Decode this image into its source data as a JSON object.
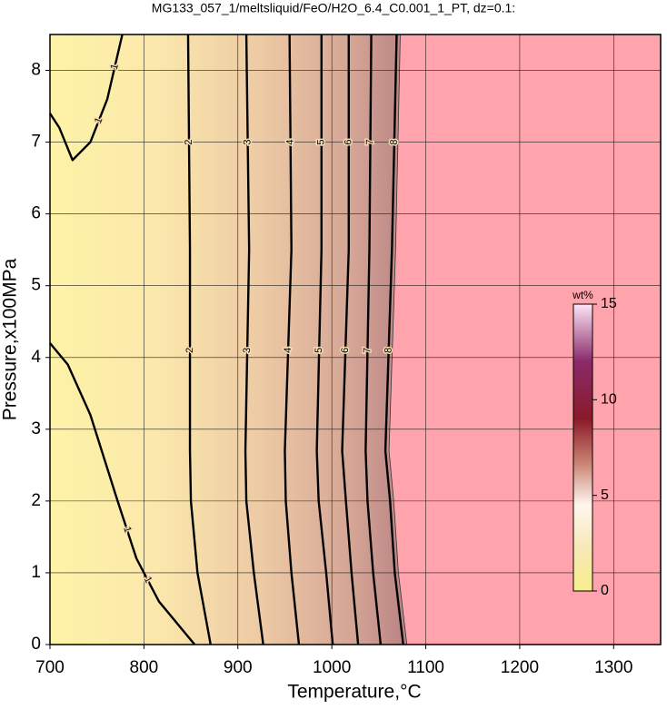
{
  "chart_data": {
    "type": "contour",
    "title": "MG133_057_1/meltsliquid/FeO/H2O_6.4_C0.001_1_PT, dz=0.1:",
    "x_label": "Temperature,°C",
    "y_label": "Pressure,x100MPa",
    "xlim": [
      700,
      1350
    ],
    "ylim": [
      0,
      8.5
    ],
    "xticks": [
      700,
      800,
      900,
      1000,
      1100,
      1200,
      1300
    ],
    "yticks": [
      0,
      1,
      2,
      3,
      4,
      5,
      6,
      7,
      8
    ],
    "grid": true,
    "series": [
      {
        "name": "1",
        "x": [
          700,
          719,
          743,
          772,
          792,
          816,
          854
        ],
        "values": [
          4.2,
          3.9,
          3.2,
          2.0,
          1.2,
          0.6,
          0
        ]
      },
      {
        "name": "1",
        "x": [
          700,
          710,
          724,
          743,
          761,
          777
        ],
        "values": [
          7.4,
          7.2,
          6.75,
          7.0,
          7.6,
          8.5
        ]
      },
      {
        "name": "2",
        "x": [
          871,
          857,
          850,
          849,
          849,
          847
        ],
        "values": [
          0,
          1,
          2,
          2.7,
          5.5,
          8.5
        ]
      },
      {
        "name": "3",
        "x": [
          927,
          917,
          909,
          908,
          912,
          909
        ],
        "values": [
          0,
          1,
          2,
          2.7,
          5.5,
          8.5
        ]
      },
      {
        "name": "4",
        "x": [
          965,
          957,
          951,
          950,
          957,
          955
        ],
        "values": [
          0,
          1,
          2,
          2.7,
          5.5,
          8.5
        ]
      },
      {
        "name": "5",
        "x": [
          1001,
          994,
          986,
          984,
          989,
          989
        ],
        "values": [
          0,
          1,
          2,
          2.7,
          5.5,
          8.5
        ]
      },
      {
        "name": "6",
        "x": [
          1028,
          1021,
          1015,
          1011,
          1018,
          1018
        ],
        "values": [
          0,
          1,
          2,
          2.7,
          5.5,
          8.5
        ]
      },
      {
        "name": "7",
        "x": [
          1052,
          1044,
          1038,
          1036,
          1040,
          1042
        ],
        "values": [
          0,
          1,
          2,
          2.7,
          5.5,
          8.5
        ]
      },
      {
        "name": "8",
        "x": [
          1076,
          1067,
          1062,
          1057,
          1064,
          1069
        ],
        "values": [
          0,
          1,
          2,
          2.7,
          5.5,
          8.5
        ]
      }
    ],
    "colorbar": {
      "label": "wt%",
      "lim": [
        0,
        15
      ],
      "ticks": [
        0,
        5,
        10,
        15
      ]
    }
  }
}
